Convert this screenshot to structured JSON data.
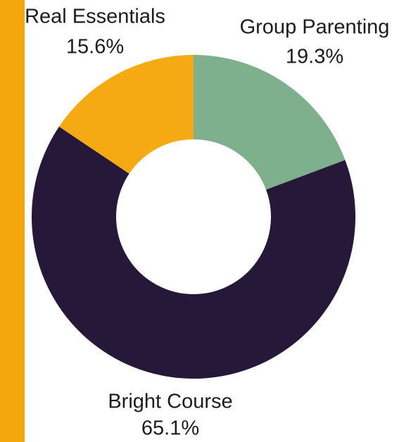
{
  "chart_data": {
    "type": "donut",
    "categories": [
      "Group Parenting",
      "Bright Course",
      "Real Essentials"
    ],
    "values": [
      19.3,
      65.1,
      15.6
    ],
    "value_labels": [
      "19.3%",
      "65.1%",
      "15.6%"
    ],
    "colors": [
      "#7fb08e",
      "#261838",
      "#f5aa14"
    ]
  }
}
